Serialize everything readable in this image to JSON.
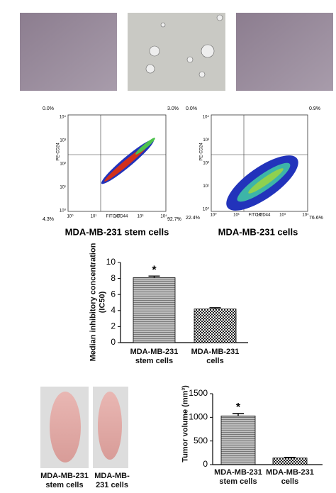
{
  "flow_plots": [
    {
      "caption": "MDA-MB-231 stem cells",
      "x_label": "FITC-CD44",
      "y_label": "PE-CD24",
      "quadrants": [
        "0.0%",
        "3.0%",
        "4.3%",
        "92.7%"
      ],
      "ticks": [
        "10⁰",
        "10¹",
        "10²",
        "10³",
        "10⁴"
      ]
    },
    {
      "caption": "MDA-MB-231 cells",
      "x_label": "FITC-CD44",
      "y_label": "PE-CD24",
      "quadrants": [
        "0.0%",
        "0.9%",
        "22.4%",
        "76.6%"
      ],
      "ticks": [
        "10⁰",
        "10¹",
        "10²",
        "10³",
        "10⁴"
      ]
    }
  ],
  "mouse_labels": [
    "MDA-MB-231 stem cells",
    "MDA-MB-231 cells"
  ],
  "chart_data": [
    {
      "type": "bar",
      "y_label": "Median inhibitory concentration (IC50)",
      "categories": [
        "MDA-MB-231 stem cells",
        "MDA-MB-231 cells"
      ],
      "values": [
        8.1,
        4.2
      ],
      "errors": [
        0.2,
        0.15
      ],
      "value_annotations": [
        "*",
        null
      ],
      "ylim": [
        0,
        10
      ],
      "yticks": [
        0,
        2,
        4,
        6,
        8,
        10
      ]
    },
    {
      "type": "bar",
      "y_label": "Tumor volume (mm³)",
      "categories": [
        "MDA-MB-231 stem cells",
        "MDA-MB-231 cells"
      ],
      "values": [
        1030,
        140
      ],
      "errors": [
        50,
        15
      ],
      "value_annotations": [
        "*",
        null
      ],
      "ylim": [
        0,
        1500
      ],
      "yticks": [
        0,
        500,
        1000,
        1500
      ]
    }
  ]
}
